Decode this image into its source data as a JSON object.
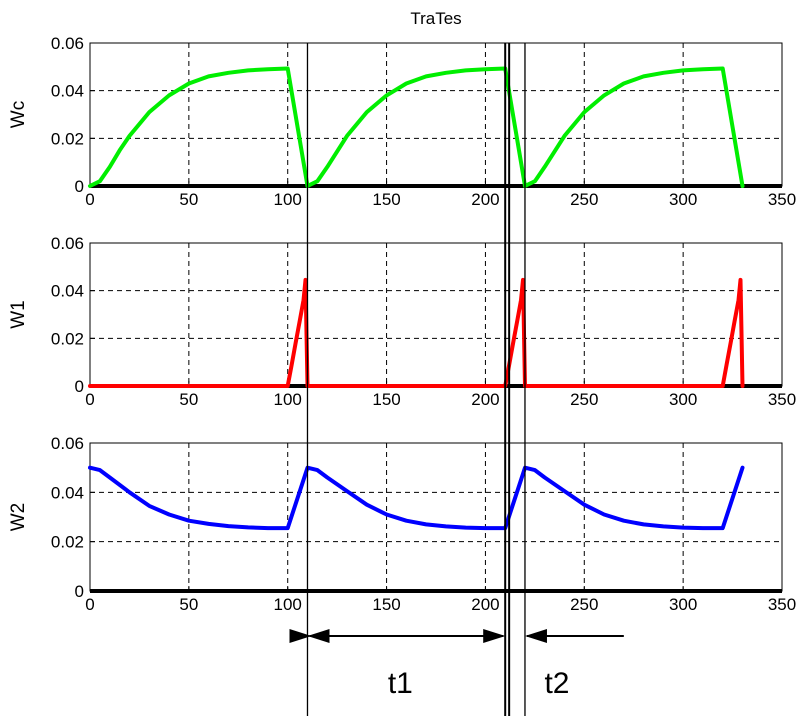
{
  "figure": {
    "title": "TraTes",
    "interval_labels": [
      "t1",
      "t2"
    ]
  },
  "chart_data": [
    {
      "type": "line",
      "title": "TraTes",
      "xlabel": "",
      "ylabel": "Wc",
      "xlim": [
        0,
        350
      ],
      "ylim": [
        0,
        0.06
      ],
      "xticks": [
        "0",
        "50",
        "100",
        "150",
        "200",
        "250",
        "300",
        "350"
      ],
      "yticks": [
        "0",
        "0.02",
        "0.04",
        "0.06"
      ],
      "grid": true,
      "series": [
        {
          "color": "#00ee00",
          "x": [
            0,
            5,
            10,
            15,
            20,
            30,
            40,
            50,
            60,
            70,
            80,
            90,
            100,
            110,
            115,
            120,
            130,
            140,
            150,
            160,
            170,
            180,
            190,
            200,
            210,
            220,
            225,
            230,
            240,
            250,
            260,
            270,
            280,
            290,
            300,
            310,
            320,
            330
          ],
          "y": [
            0,
            0.002,
            0.008,
            0.015,
            0.021,
            0.031,
            0.038,
            0.043,
            0.046,
            0.0475,
            0.0485,
            0.049,
            0.0493,
            0,
            0.002,
            0.008,
            0.021,
            0.031,
            0.038,
            0.043,
            0.046,
            0.0475,
            0.0485,
            0.049,
            0.0493,
            0,
            0.002,
            0.008,
            0.021,
            0.031,
            0.038,
            0.043,
            0.046,
            0.0475,
            0.0485,
            0.049,
            0.0493,
            0
          ]
        }
      ],
      "baseline": {
        "color": "#000000",
        "y": 0,
        "x": [
          0,
          350
        ]
      }
    },
    {
      "type": "line",
      "xlabel": "",
      "ylabel": "W1",
      "xlim": [
        0,
        350
      ],
      "ylim": [
        0,
        0.06
      ],
      "xticks": [
        "0",
        "50",
        "100",
        "150",
        "200",
        "250",
        "300",
        "350"
      ],
      "yticks": [
        "0",
        "0.02",
        "0.04",
        "0.06"
      ],
      "grid": true,
      "series": [
        {
          "color": "#ff0000",
          "x": [
            0,
            100,
            102,
            104,
            106,
            108,
            109,
            110,
            210,
            212,
            214,
            216,
            218,
            219,
            220,
            320,
            322,
            324,
            326,
            328,
            329,
            330
          ],
          "y": [
            0,
            0,
            0.009,
            0.018,
            0.027,
            0.036,
            0.0445,
            0,
            0,
            0.009,
            0.018,
            0.027,
            0.036,
            0.0445,
            0,
            0,
            0.009,
            0.018,
            0.027,
            0.036,
            0.0445,
            0
          ]
        }
      ],
      "baseline": {
        "color": "#000000",
        "y": 0,
        "x": [
          0,
          350
        ]
      }
    },
    {
      "type": "line",
      "xlabel": "",
      "ylabel": "W2",
      "xlim": [
        0,
        350
      ],
      "ylim": [
        0,
        0.06
      ],
      "xticks": [
        "0",
        "50",
        "100",
        "150",
        "200",
        "250",
        "300",
        "350"
      ],
      "yticks": [
        "0",
        "0.02",
        "0.04",
        "0.06"
      ],
      "grid": true,
      "series": [
        {
          "color": "#0000ff",
          "x": [
            0,
            5,
            10,
            20,
            30,
            40,
            50,
            60,
            70,
            80,
            90,
            100,
            110,
            115,
            120,
            130,
            140,
            150,
            160,
            170,
            180,
            190,
            200,
            210,
            220,
            225,
            230,
            240,
            250,
            260,
            270,
            280,
            290,
            300,
            310,
            320,
            330
          ],
          "y": [
            0.05,
            0.049,
            0.046,
            0.04,
            0.0345,
            0.031,
            0.0285,
            0.0272,
            0.0263,
            0.0258,
            0.0255,
            0.0255,
            0.05,
            0.049,
            0.046,
            0.0405,
            0.035,
            0.031,
            0.0285,
            0.027,
            0.0262,
            0.0257,
            0.0255,
            0.0255,
            0.05,
            0.049,
            0.046,
            0.0405,
            0.035,
            0.031,
            0.0285,
            0.027,
            0.0262,
            0.0257,
            0.0255,
            0.0255,
            0.05
          ]
        }
      ],
      "baseline": {
        "color": "#000000",
        "y": 0,
        "x": [
          0,
          350
        ]
      }
    }
  ],
  "annotations": {
    "vertical_lines_x": [
      110,
      210,
      212,
      220
    ],
    "intervals": [
      {
        "label": "t1",
        "from": 110,
        "to": 210
      },
      {
        "label": "t2",
        "from": 220,
        "to": 270
      }
    ]
  }
}
